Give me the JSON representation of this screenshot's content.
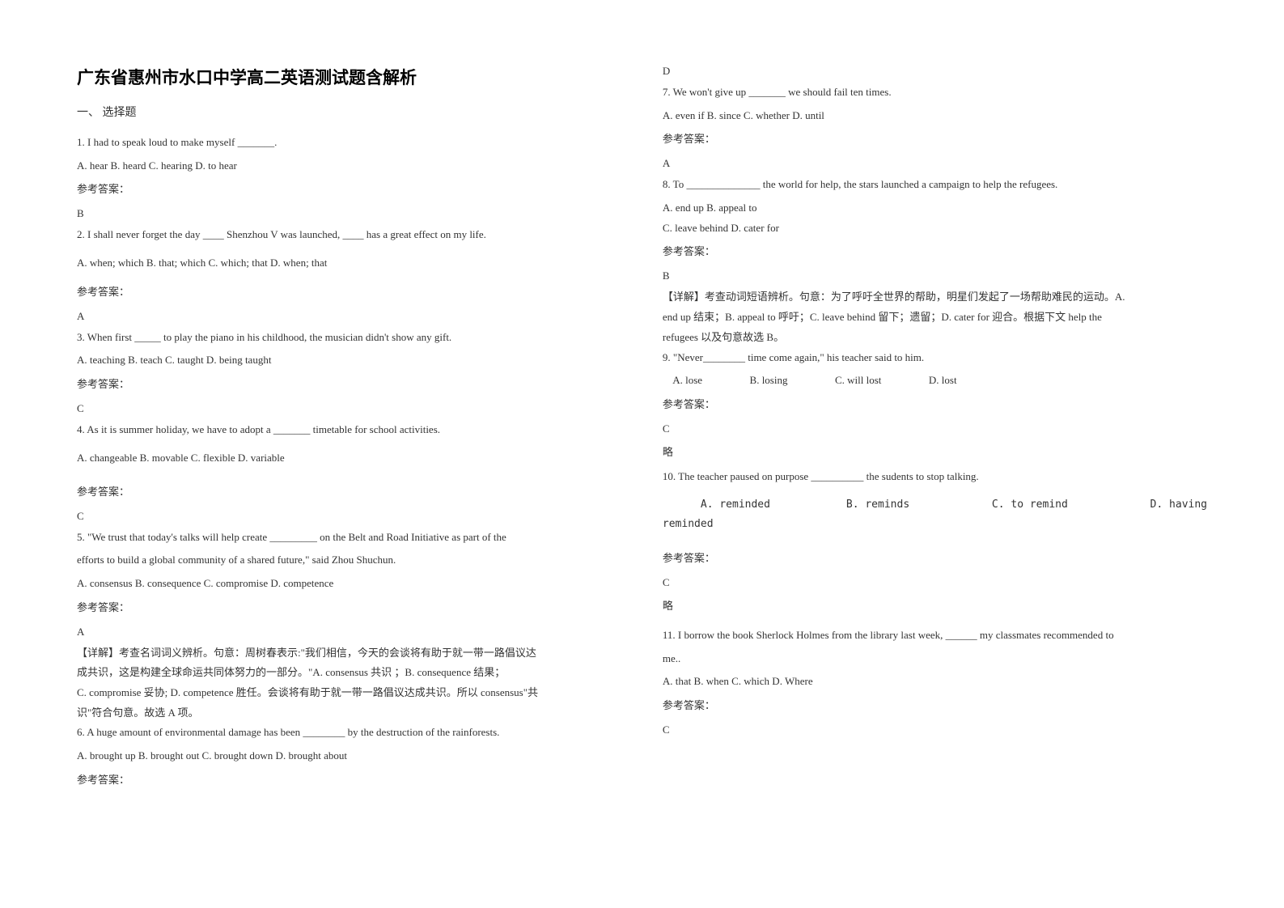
{
  "doc": {
    "title": "广东省惠州市水口中学高二英语测试题含解析",
    "section1": "一、 选择题",
    "refAnswerLabel": "参考答案：",
    "omitLabel": "略"
  },
  "left": {
    "q1": {
      "stem": "1. I had to speak loud to make myself _______.",
      "opts": "A. hear        B. heard       C. hearing        D. to hear",
      "ans": "B"
    },
    "q2": {
      "stem": "2. I shall never forget the day ____ Shenzhou V was launched, ____ has a great effect on my life.",
      "opts": "A. when; which          B. that; which          C. which; that               D. when; that",
      "ans": "A"
    },
    "q3": {
      "stem": "3. When first _____ to play the piano in his childhood, the musician didn't show any gift.",
      "opts": "A. teaching   B. teach   C. taught   D. being taught",
      "ans": "C"
    },
    "q4": {
      "stem": "4. As it is summer holiday, we have to adopt a _______ timetable for school activities.",
      "opts": "   A. changeable     B. movable     C. flexible     D. variable",
      "ans": "C"
    },
    "q5": {
      "stem1": "5. \"We trust that today's talks will help create _________ on the Belt and Road Initiative as part of the",
      "stem2": "efforts to build a global community of a shared future,\" said Zhou Shuchun.",
      "opts": "A. consensus     B. consequence C. compromise    D. competence",
      "ans": "A",
      "explain1": "【详解】考查名词词义辨析。句意：周树春表示:\"我们相信，今天的会谈将有助于就一带一路倡议达",
      "explain2": "成共识，这是构建全球命运共同体努力的一部分。\"A. consensus 共识        ；B. consequence 结果；",
      "explain3": "C. compromise 妥协; D. competence 胜任。会谈将有助于就一带一路倡议达成共识。所以 consensus\"共",
      "explain4": "识\"符合句意。故选 A 项。"
    },
    "q6": {
      "stem": "6. A huge amount of environmental damage has been ________ by the destruction of the rainforests.",
      "opts": "     A. brought up                    B. brought out     C. brought down                D. brought about"
    }
  },
  "right": {
    "q6ans": "D",
    "q7": {
      "stem": "7. We won't give up _______ we should fail ten times.",
      "opts": "A. even if     B. since   C. whether    D. until",
      "ans": "A"
    },
    "q8": {
      "stem": "8. To ______________ the world for help, the stars launched a campaign to help the refugees.",
      "opts1": "A. end up         B. appeal to",
      "opts2": "C. leave behind D. cater for",
      "ans": "B",
      "explain1": "【详解】考查动词短语辨析。句意：为了呼吁全世界的帮助，明星们发起了一场帮助难民的运动。A.",
      "explain2": "end up 结束；B. appeal to 呼吁；C. leave behind 留下；遗留；D. cater for 迎合。根据下文 help the",
      "explain3": "refugees 以及句意故选 B。"
    },
    "q9": {
      "stem": "9. \"Never________ time come again,\" his teacher said to him.",
      "opts": "    A. lose                  B. losing                  C. will lost                  D. lost",
      "ans": "C"
    },
    "q10": {
      "stem": "10. The teacher paused on purpose __________ the sudents to stop talking.",
      "opts": "      A. reminded            B. reminds             C. to remind             D. having",
      "opts2": "reminded",
      "ans": "C"
    },
    "q11": {
      "stem1": "11. I borrow the book Sherlock Holmes from the library last week, ______ my classmates recommended to",
      "stem2": "me..",
      "opts": "A. that     B. when    C. which        D. Where",
      "ans": "C"
    }
  },
  "style": {
    "background": "#ffffff",
    "textColor": "#333333",
    "titleFontSize": 21,
    "bodyFontSize": 13,
    "lineHeight": 1.9,
    "pageWidth": 1587,
    "pageHeight": 1122
  }
}
